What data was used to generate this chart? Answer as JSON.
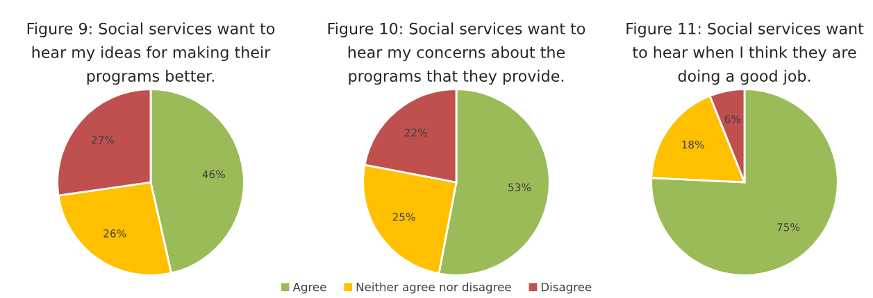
{
  "chart_data": [
    {
      "type": "pie",
      "title": "Figure 9: Social services want to\nhear my ideas for making their\nprograms better.",
      "categories": [
        "Agree",
        "Neither agree nor disagree",
        "Disagree"
      ],
      "values": [
        46,
        26,
        27
      ],
      "value_labels": [
        "46%",
        "26%",
        "27%"
      ],
      "colors": [
        "#9bbb59",
        "#ffc000",
        "#c0504d"
      ],
      "legend": "bottom"
    },
    {
      "type": "pie",
      "title": "Figure 10: Social services want to\nhear my concerns about the\nprograms that they provide.",
      "categories": [
        null,
        null,
        null
      ],
      "values": [
        53,
        25,
        22
      ],
      "value_labels": [
        "53%",
        "25%",
        "22%"
      ],
      "colors": [
        "#9bbb59",
        "#ffc000",
        "#c0504d"
      ]
    },
    {
      "type": "pie",
      "title": "Figure 11: Social services want\nto hear when I think they are\ndoing a good job.",
      "categories": [
        null,
        null,
        null
      ],
      "values": [
        75,
        18,
        6
      ],
      "value_labels": [
        "75%",
        "18%",
        "6%"
      ],
      "colors": [
        "#9bbb59",
        "#ffc000",
        "#c0504d"
      ]
    }
  ]
}
